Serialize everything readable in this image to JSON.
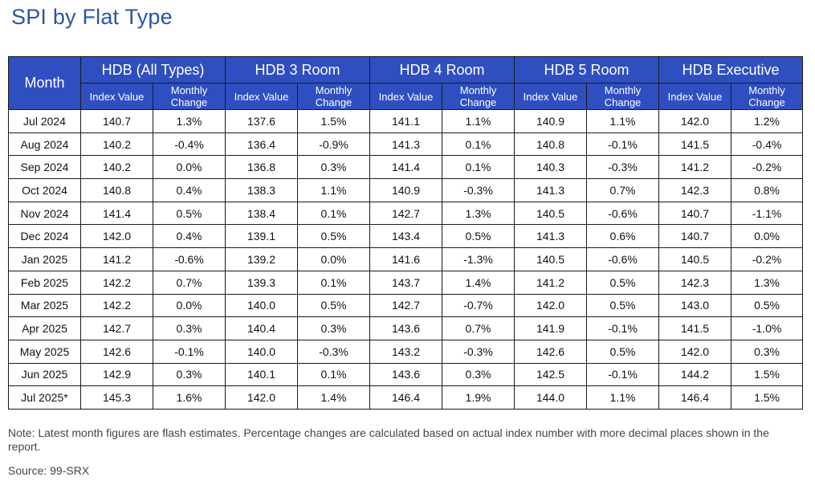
{
  "title": "SPI by Flat Type",
  "table": {
    "month_header": "Month",
    "groups": [
      "HDB (All Types)",
      "HDB 3 Room",
      "HDB 4 Room",
      "HDB 5 Room",
      "HDB Executive"
    ],
    "subheaders": {
      "index": "Index Value",
      "change": "Monthly Change"
    },
    "rows": [
      [
        "Jul 2024",
        "140.7",
        "1.3%",
        "137.6",
        "1.5%",
        "141.1",
        "1.1%",
        "140.9",
        "1.1%",
        "142.0",
        "1.2%"
      ],
      [
        "Aug 2024",
        "140.2",
        "-0.4%",
        "136.4",
        "-0.9%",
        "141.3",
        "0.1%",
        "140.8",
        "-0.1%",
        "141.5",
        "-0.4%"
      ],
      [
        "Sep 2024",
        "140.2",
        "0.0%",
        "136.8",
        "0.3%",
        "141.4",
        "0.1%",
        "140.3",
        "-0.3%",
        "141.2",
        "-0.2%"
      ],
      [
        "Oct 2024",
        "140.8",
        "0.4%",
        "138.3",
        "1.1%",
        "140.9",
        "-0.3%",
        "141.3",
        "0.7%",
        "142.3",
        "0.8%"
      ],
      [
        "Nov 2024",
        "141.4",
        "0.5%",
        "138.4",
        "0.1%",
        "142.7",
        "1.3%",
        "140.5",
        "-0.6%",
        "140.7",
        "-1.1%"
      ],
      [
        "Dec 2024",
        "142.0",
        "0.4%",
        "139.1",
        "0.5%",
        "143.4",
        "0.5%",
        "141.3",
        "0.6%",
        "140.7",
        "0.0%"
      ],
      [
        "Jan 2025",
        "141.2",
        "-0.6%",
        "139.2",
        "0.0%",
        "141.6",
        "-1.3%",
        "140.5",
        "-0.6%",
        "140.5",
        "-0.2%"
      ],
      [
        "Feb 2025",
        "142.2",
        "0.7%",
        "139.3",
        "0.1%",
        "143.7",
        "1.4%",
        "141.2",
        "0.5%",
        "142.3",
        "1.3%"
      ],
      [
        "Mar 2025",
        "142.2",
        "0.0%",
        "140.0",
        "0.5%",
        "142.7",
        "-0.7%",
        "142.0",
        "0.5%",
        "143.0",
        "0.5%"
      ],
      [
        "Apr 2025",
        "142.7",
        "0.3%",
        "140.4",
        "0.3%",
        "143.6",
        "0.7%",
        "141.9",
        "-0.1%",
        "141.5",
        "-1.0%"
      ],
      [
        "May 2025",
        "142.6",
        "-0.1%",
        "140.0",
        "-0.3%",
        "143.2",
        "-0.3%",
        "142.6",
        "0.5%",
        "142.0",
        "0.3%"
      ],
      [
        "Jun 2025",
        "142.9",
        "0.3%",
        "140.1",
        "0.1%",
        "143.6",
        "0.3%",
        "142.5",
        "-0.1%",
        "144.2",
        "1.5%"
      ],
      [
        "Jul 2025*",
        "145.3",
        "1.6%",
        "142.0",
        "1.4%",
        "146.4",
        "1.9%",
        "144.0",
        "1.1%",
        "146.4",
        "1.5%"
      ]
    ]
  },
  "note": "Note: Latest month figures are flash estimates. Percentage changes are calculated based on actual index number with more decimal places shown in the report.",
  "source": "Source: 99-SRX",
  "colors": {
    "header_bg": "#2f4fc1",
    "title": "#2a55a8"
  }
}
